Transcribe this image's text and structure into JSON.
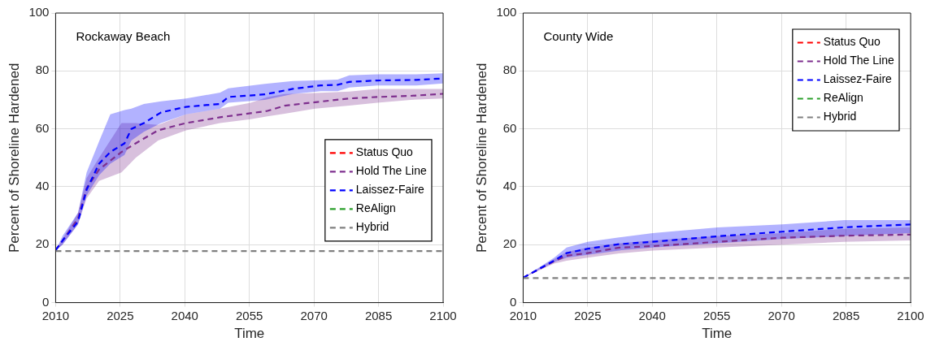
{
  "chart_data": [
    {
      "type": "line",
      "title": "Rockaway Beach",
      "xlabel": "Time",
      "ylabel": "Percent of Shoreline Hardened",
      "xlim": [
        2010,
        2100
      ],
      "ylim": [
        0,
        100
      ],
      "xticks": [
        2010,
        2025,
        2040,
        2055,
        2070,
        2085,
        2100
      ],
      "yticks": [
        0,
        20,
        40,
        60,
        80,
        100
      ],
      "grid": true,
      "legend": "right",
      "marker": "none",
      "line_style": "dashed",
      "series": [
        {
          "name": "Status Quo",
          "color": "#ff0000"
        },
        {
          "name": "Hold The Line",
          "color": "#7e2f8e",
          "x": [
            2010,
            2011.6,
            2015.2,
            2017.2,
            2020.1,
            2025.3,
            2028.6,
            2033.8,
            2040.3,
            2048.2,
            2055.3,
            2059.2,
            2063.2,
            2070.3,
            2078.2,
            2084.7,
            2092.5,
            2100
          ],
          "values": [
            18.1,
            21.4,
            29,
            39.5,
            46,
            52,
            55,
            59.5,
            62,
            64,
            65.4,
            66.2,
            68,
            69.2,
            70.5,
            71,
            71.4,
            72.1
          ],
          "lower": [
            18,
            20,
            27,
            36,
            42,
            45,
            50,
            56,
            59.5,
            62,
            63.3,
            64.3,
            65.2,
            67,
            68,
            69,
            70,
            70.5
          ],
          "upper": [
            18,
            22,
            31,
            43,
            50,
            62,
            62,
            61.4,
            65,
            67,
            69,
            71,
            72,
            72.4,
            72.9,
            73.8,
            73.8,
            73.8
          ]
        },
        {
          "name": "Laissez-Faire",
          "color": "#0000ff",
          "x": [
            2010,
            2011.6,
            2015.2,
            2017.2,
            2020.1,
            2022.7,
            2026,
            2027.6,
            2030.5,
            2034.5,
            2040.3,
            2048.2,
            2050.1,
            2058.6,
            2065.1,
            2071.6,
            2075.5,
            2078.2,
            2084.7,
            2093.8,
            2100
          ],
          "values": [
            18.1,
            21.4,
            28,
            39,
            48,
            52,
            55,
            60,
            62,
            65.7,
            67.6,
            68.6,
            71,
            71.9,
            73.8,
            75,
            75.2,
            76.2,
            76.7,
            76.9,
            77.4
          ],
          "lower": [
            18,
            20,
            27,
            37,
            44,
            48,
            51,
            56,
            59,
            62,
            65,
            67,
            69,
            70,
            72,
            73,
            73,
            74.3,
            75,
            75,
            75.7
          ],
          "upper": [
            18,
            23,
            31,
            45,
            55.7,
            65,
            66.5,
            67,
            68.6,
            69.5,
            70.5,
            72.5,
            74,
            75.5,
            76.5,
            76.8,
            77,
            78.5,
            78.8,
            78.8,
            79.2
          ]
        },
        {
          "name": "ReAlign",
          "color": "#2ca02c"
        },
        {
          "name": "Hybrid",
          "color": "#808080",
          "x": [
            2010,
            2100
          ],
          "values": [
            17.8,
            17.8
          ]
        }
      ]
    },
    {
      "type": "line",
      "title": "County Wide",
      "xlabel": "Time",
      "ylabel": "Percent of Shoreline Hardened",
      "xlim": [
        2010,
        2100
      ],
      "ylim": [
        0,
        100
      ],
      "xticks": [
        2010,
        2025,
        2040,
        2055,
        2070,
        2085,
        2100
      ],
      "yticks": [
        0,
        20,
        40,
        60,
        80,
        100
      ],
      "grid": true,
      "legend": "top right",
      "marker": "none",
      "line_style": "dashed",
      "series": [
        {
          "name": "Status Quo",
          "color": "#ff0000"
        },
        {
          "name": "Hold The Line",
          "color": "#7e2f8e",
          "x": [
            2010,
            2017.2,
            2020.1,
            2025,
            2032.3,
            2040.1,
            2055.2,
            2070.2,
            2084.6,
            2100
          ],
          "values": [
            8.6,
            14.3,
            16.2,
            17.1,
            19,
            19.5,
            21,
            22.4,
            23.1,
            23.5
          ],
          "lower": [
            8.6,
            13.5,
            14.5,
            15.5,
            17,
            18,
            19,
            20,
            21,
            21.5
          ],
          "upper": [
            8.6,
            15,
            17.5,
            19,
            20.5,
            21.5,
            23,
            24,
            25.5,
            26
          ]
        },
        {
          "name": "Laissez-Faire",
          "color": "#0000ff",
          "x": [
            2010,
            2017.2,
            2020.1,
            2025,
            2032.3,
            2040.1,
            2055.2,
            2070.2,
            2084.6,
            2100
          ],
          "values": [
            8.6,
            14.5,
            17.1,
            18.6,
            20.2,
            21,
            22.9,
            24.5,
            26,
            27
          ],
          "lower": [
            8.6,
            14,
            15.5,
            16.5,
            18,
            19,
            20.5,
            22,
            23,
            24
          ],
          "upper": [
            8.6,
            15.5,
            19,
            21,
            22.5,
            24,
            26,
            27,
            28.5,
            28.5
          ]
        },
        {
          "name": "ReAlign",
          "color": "#2ca02c"
        },
        {
          "name": "Hybrid",
          "color": "#808080",
          "x": [
            2010,
            2100
          ],
          "values": [
            8.5,
            8.5
          ]
        }
      ]
    }
  ]
}
